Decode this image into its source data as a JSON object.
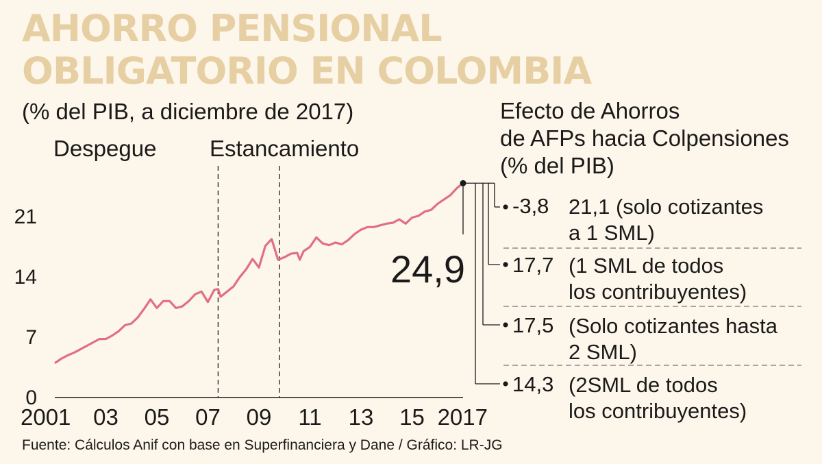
{
  "title_lines": [
    "AHORRO PENSIONAL",
    "OBLIGATORIO EN COLOMBIA"
  ],
  "subtitle": "(% del PIB, a diciembre de 2017)",
  "colors": {
    "background": "#fdf6ea",
    "title": "#e7cfa4",
    "line": "#e06f83",
    "text": "#1a1a1a",
    "divider": "#777777"
  },
  "chart_data": {
    "type": "line",
    "title": "AHORRO PENSIONAL OBLIGATORIO EN COLOMBIA",
    "subtitle": "(% del PIB, a diciembre de 2017)",
    "xlabel": "",
    "ylabel": "",
    "xlim": [
      2001,
      2017
    ],
    "ylim": [
      0,
      25
    ],
    "x_ticks": [
      {
        "value": 2001,
        "label": "2001"
      },
      {
        "value": 2003,
        "label": "03"
      },
      {
        "value": 2005,
        "label": "05"
      },
      {
        "value": 2007,
        "label": "07"
      },
      {
        "value": 2009,
        "label": "09"
      },
      {
        "value": 2011,
        "label": "11"
      },
      {
        "value": 2013,
        "label": "13"
      },
      {
        "value": 2015,
        "label": "15"
      },
      {
        "value": 2017,
        "label": "2017"
      }
    ],
    "y_ticks": [
      0,
      7,
      14,
      21
    ],
    "grid": false,
    "legend": "none",
    "periods": [
      {
        "label": "Despegue",
        "from": 2001,
        "to": 2007.4
      },
      {
        "label": "Estancamiento",
        "from": 2007.4,
        "to": 2009.8
      }
    ],
    "period_dividers": [
      2007.4,
      2009.8
    ],
    "end_label": "24,9",
    "series": [
      {
        "x": [
          2001.0,
          2001.25,
          2001.5,
          2001.75,
          2002.0,
          2002.25,
          2002.5,
          2002.75,
          2003.0,
          2003.25,
          2003.5,
          2003.75,
          2004.0,
          2004.25,
          2004.5,
          2004.75,
          2005.0,
          2005.25,
          2005.5,
          2005.75,
          2006.0,
          2006.25,
          2006.5,
          2006.75,
          2007.0,
          2007.25,
          2007.4,
          2007.5,
          2007.75,
          2008.0,
          2008.25,
          2008.5,
          2008.75,
          2009.0,
          2009.25,
          2009.5,
          2009.75,
          2010.0,
          2010.25,
          2010.5,
          2010.6,
          2010.75,
          2011.0,
          2011.25,
          2011.5,
          2011.75,
          2012.0,
          2012.25,
          2012.5,
          2012.75,
          2013.0,
          2013.25,
          2013.5,
          2013.75,
          2014.0,
          2014.25,
          2014.5,
          2014.75,
          2015.0,
          2015.25,
          2015.5,
          2015.75,
          2016.0,
          2016.25,
          2016.5,
          2016.75,
          2017.0
        ],
        "values": [
          4.0,
          4.5,
          4.9,
          5.2,
          5.6,
          6.0,
          6.4,
          6.8,
          6.8,
          7.2,
          7.7,
          8.4,
          8.6,
          9.3,
          10.3,
          11.4,
          10.4,
          11.2,
          11.2,
          10.4,
          10.6,
          11.2,
          12.0,
          12.3,
          11.1,
          12.5,
          12.6,
          11.7,
          12.3,
          12.9,
          14.0,
          14.9,
          16.1,
          15.1,
          17.6,
          18.4,
          16.0,
          16.3,
          16.7,
          16.8,
          16.0,
          17.0,
          17.5,
          18.6,
          17.9,
          17.7,
          18.0,
          17.8,
          18.3,
          19.0,
          19.5,
          19.8,
          19.8,
          20.0,
          20.2,
          20.3,
          20.7,
          20.2,
          20.9,
          21.1,
          21.6,
          21.8,
          22.5,
          23.0,
          23.5,
          24.3,
          24.9
        ]
      }
    ]
  },
  "side_panel": {
    "header_lines": [
      "Efecto de Ahorros",
      "de AFPs hacia Colpensiones",
      "(% del PIB)"
    ],
    "effects": [
      {
        "value": "-3,8",
        "desc_lines": [
          "21,1 (solo cotizantes",
          "a 1 SML)"
        ]
      },
      {
        "value": "17,7",
        "desc_lines": [
          "(1 SML de todos",
          "los contribuyentes)"
        ]
      },
      {
        "value": "17,5",
        "desc_lines": [
          "(Solo cotizantes hasta",
          "2 SML)"
        ]
      },
      {
        "value": "14,3",
        "desc_lines": [
          "(2SML de todos",
          "los contribuyentes)"
        ]
      }
    ]
  },
  "source": "Fuente: Cálculos Anif con base en Superfinanciera y Dane / Gráfico: LR-JG"
}
